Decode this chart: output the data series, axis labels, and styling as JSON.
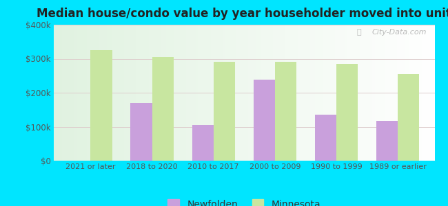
{
  "title": "Median house/condo value by year householder moved into unit",
  "categories": [
    "2021 or later",
    "2018 to 2020",
    "2010 to 2017",
    "2000 to 2009",
    "1990 to 1999",
    "1989 or earlier"
  ],
  "newfolden": [
    0,
    170000,
    105000,
    238000,
    135000,
    118000
  ],
  "minnesota": [
    325000,
    305000,
    290000,
    290000,
    285000,
    255000
  ],
  "newfolden_color": "#c9a0dc",
  "minnesota_color": "#c8e6a0",
  "background_color": "#00e5ff",
  "ylim": [
    0,
    400000
  ],
  "yticks": [
    0,
    100000,
    200000,
    300000,
    400000
  ],
  "ytick_labels": [
    "$0",
    "$100k",
    "$200k",
    "$300k",
    "$400k"
  ],
  "bar_width": 0.35,
  "watermark": "City-Data.com"
}
